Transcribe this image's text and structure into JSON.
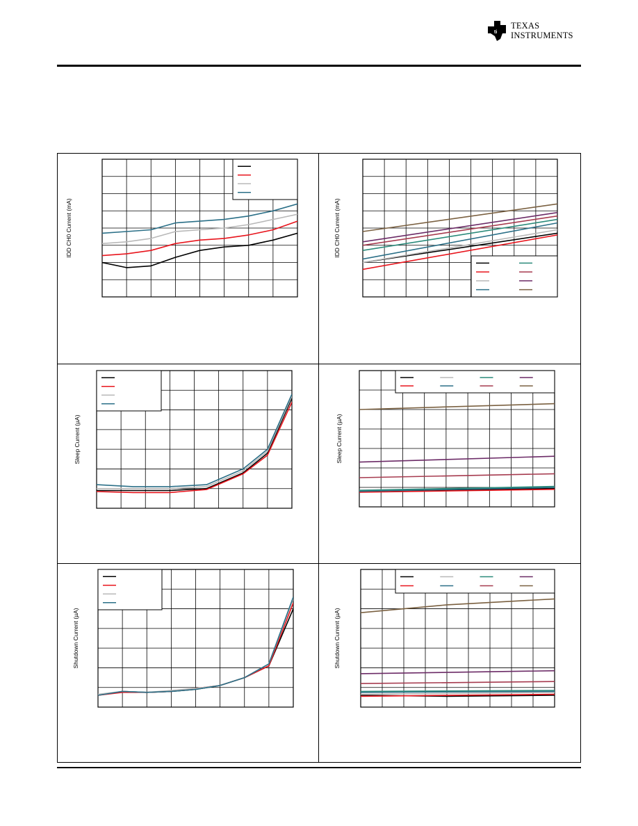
{
  "header": {
    "logo_line1": "Texas",
    "logo_line2": "Instruments",
    "colors": {
      "rule": "#000000"
    }
  },
  "chart_data": [
    {
      "type": "line",
      "ylabel": "IDD CH0 Current (mA)",
      "grid": true,
      "xlim": [
        0,
        8
      ],
      "ylim": [
        0,
        8
      ],
      "legend": {
        "placement": "top-right",
        "columns": 1
      },
      "series": [
        {
          "color": "#000000",
          "x": [
            0,
            1,
            2,
            3,
            4,
            5,
            6,
            7,
            8
          ],
          "y": [
            2.0,
            1.7,
            1.8,
            2.3,
            2.7,
            2.9,
            3.0,
            3.3,
            3.7
          ]
        },
        {
          "color": "#e8141c",
          "x": [
            0,
            1,
            2,
            3,
            4,
            5,
            6,
            7,
            8
          ],
          "y": [
            2.4,
            2.5,
            2.7,
            3.1,
            3.3,
            3.4,
            3.6,
            3.9,
            4.4
          ]
        },
        {
          "color": "#b8b8b8",
          "x": [
            0,
            1,
            2,
            3,
            4,
            5,
            6,
            7,
            8
          ],
          "y": [
            3.1,
            3.2,
            3.4,
            3.8,
            3.9,
            4.0,
            4.2,
            4.5,
            4.8
          ]
        },
        {
          "color": "#2a6f87",
          "x": [
            0,
            1,
            2,
            3,
            4,
            5,
            6,
            7,
            8
          ],
          "y": [
            3.7,
            3.8,
            3.9,
            4.3,
            4.4,
            4.5,
            4.7,
            5.0,
            5.4
          ]
        }
      ]
    },
    {
      "type": "line",
      "ylabel": "IDD CH0 Current (mA)",
      "grid": true,
      "xlim": [
        0,
        9
      ],
      "ylim": [
        0,
        8
      ],
      "legend": {
        "placement": "bottom-right",
        "columns": 2
      },
      "series": [
        {
          "color": "#000000",
          "x": [
            0,
            9
          ],
          "y": [
            2.0,
            3.7
          ]
        },
        {
          "color": "#e8141c",
          "x": [
            0,
            9
          ],
          "y": [
            1.6,
            3.6
          ]
        },
        {
          "color": "#b8b8b8",
          "x": [
            0,
            9
          ],
          "y": [
            2.0,
            3.9
          ]
        },
        {
          "color": "#2a6f87",
          "x": [
            0,
            9
          ],
          "y": [
            2.2,
            4.3
          ]
        },
        {
          "color": "#2a8a7a",
          "x": [
            0,
            9
          ],
          "y": [
            2.7,
            4.5
          ]
        },
        {
          "color": "#a63a4e",
          "x": [
            0,
            9
          ],
          "y": [
            3.0,
            4.7
          ]
        },
        {
          "color": "#6b2a66",
          "x": [
            0,
            9
          ],
          "y": [
            3.2,
            4.9
          ]
        },
        {
          "color": "#7a6040",
          "x": [
            0,
            9
          ],
          "y": [
            3.8,
            5.4
          ]
        }
      ]
    },
    {
      "type": "line",
      "ylabel": "Sleep Current (µA)",
      "grid": true,
      "xlim": [
        0,
        8
      ],
      "ylim": [
        0,
        7
      ],
      "legend": {
        "placement": "top-left",
        "columns": 1
      },
      "series": [
        {
          "color": "#000000",
          "x": [
            0,
            1.5,
            3,
            4.5,
            6,
            7,
            8
          ],
          "y": [
            0.9,
            0.9,
            0.9,
            1.0,
            1.8,
            2.8,
            5.6
          ]
        },
        {
          "color": "#e8141c",
          "x": [
            0,
            1.5,
            3,
            4.5,
            6,
            7,
            8
          ],
          "y": [
            0.85,
            0.8,
            0.8,
            0.95,
            1.75,
            2.7,
            5.4
          ]
        },
        {
          "color": "#b8b8b8",
          "x": [
            0,
            1.5,
            3,
            4.5,
            6,
            7,
            8
          ],
          "y": [
            1.0,
            1.0,
            1.0,
            1.1,
            1.9,
            2.9,
            5.7
          ]
        },
        {
          "color": "#2a6f87",
          "x": [
            0,
            1.5,
            3,
            4.5,
            6,
            7,
            8
          ],
          "y": [
            1.2,
            1.1,
            1.1,
            1.2,
            2.0,
            3.0,
            5.8
          ]
        }
      ]
    },
    {
      "type": "line",
      "ylabel": "Sleep Current (µA)",
      "grid": true,
      "xlim": [
        0,
        9
      ],
      "ylim": [
        0,
        7
      ],
      "legend": {
        "placement": "top",
        "columns": 4
      },
      "series": [
        {
          "color": "#000000",
          "x": [
            0,
            9
          ],
          "y": [
            0.8,
            0.95
          ]
        },
        {
          "color": "#e8141c",
          "x": [
            0,
            9
          ],
          "y": [
            0.75,
            0.9
          ]
        },
        {
          "color": "#b8b8b8",
          "x": [
            0,
            9
          ],
          "y": [
            0.85,
            1.0
          ]
        },
        {
          "color": "#2a6f87",
          "x": [
            0,
            9
          ],
          "y": [
            0.8,
            1.0
          ]
        },
        {
          "color": "#2a8a7a",
          "x": [
            0,
            9
          ],
          "y": [
            0.85,
            1.05
          ]
        },
        {
          "color": "#a63a4e",
          "x": [
            0,
            9
          ],
          "y": [
            1.5,
            1.7
          ]
        },
        {
          "color": "#6b2a66",
          "x": [
            0,
            9
          ],
          "y": [
            2.3,
            2.6
          ]
        },
        {
          "color": "#7a6040",
          "x": [
            0,
            9
          ],
          "y": [
            5.0,
            5.3
          ]
        }
      ]
    },
    {
      "type": "line",
      "ylabel": "Shutdown Current (µA)",
      "grid": true,
      "xlim": [
        0,
        8
      ],
      "ylim": [
        0,
        7
      ],
      "legend": {
        "placement": "top-left",
        "columns": 1
      },
      "series": [
        {
          "color": "#000000",
          "x": [
            0,
            1,
            2,
            3,
            4,
            5,
            6,
            7,
            8
          ],
          "y": [
            0.6,
            0.8,
            0.75,
            0.8,
            0.9,
            1.1,
            1.5,
            2.1,
            5.0
          ]
        },
        {
          "color": "#e8141c",
          "x": [
            0,
            1,
            2,
            3,
            4,
            5,
            6,
            7,
            8
          ],
          "y": [
            0.6,
            0.75,
            0.75,
            0.8,
            0.95,
            1.1,
            1.5,
            2.1,
            5.3
          ]
        },
        {
          "color": "#b8b8b8",
          "x": [
            0,
            1,
            2,
            3,
            4,
            5,
            6,
            7,
            8
          ],
          "y": [
            0.65,
            0.8,
            0.75,
            0.85,
            0.95,
            1.1,
            1.5,
            2.2,
            5.5
          ]
        },
        {
          "color": "#2a6f87",
          "x": [
            0,
            1,
            2,
            3,
            4,
            5,
            6,
            7,
            8
          ],
          "y": [
            0.6,
            0.8,
            0.75,
            0.8,
            0.9,
            1.1,
            1.5,
            2.2,
            5.6
          ]
        }
      ]
    },
    {
      "type": "line",
      "ylabel": "Shutdown Current (µA)",
      "grid": true,
      "xlim": [
        0,
        9
      ],
      "ylim": [
        0,
        7
      ],
      "legend": {
        "placement": "top",
        "columns": 4
      },
      "series": [
        {
          "color": "#000000",
          "x": [
            0,
            4,
            9
          ],
          "y": [
            0.6,
            0.55,
            0.6
          ]
        },
        {
          "color": "#e8141c",
          "x": [
            0,
            9
          ],
          "y": [
            0.55,
            0.65
          ]
        },
        {
          "color": "#b8b8b8",
          "x": [
            0,
            9
          ],
          "y": [
            0.65,
            0.75
          ]
        },
        {
          "color": "#2a6f87",
          "x": [
            0,
            9
          ],
          "y": [
            0.75,
            0.8
          ]
        },
        {
          "color": "#2a8a7a",
          "x": [
            0,
            9
          ],
          "y": [
            0.8,
            0.85
          ]
        },
        {
          "color": "#a63a4e",
          "x": [
            0,
            9
          ],
          "y": [
            1.2,
            1.3
          ]
        },
        {
          "color": "#6b2a66",
          "x": [
            0,
            9
          ],
          "y": [
            1.7,
            1.85
          ]
        },
        {
          "color": "#7a6040",
          "x": [
            0,
            4,
            9
          ],
          "y": [
            4.8,
            5.2,
            5.5
          ]
        }
      ]
    }
  ]
}
